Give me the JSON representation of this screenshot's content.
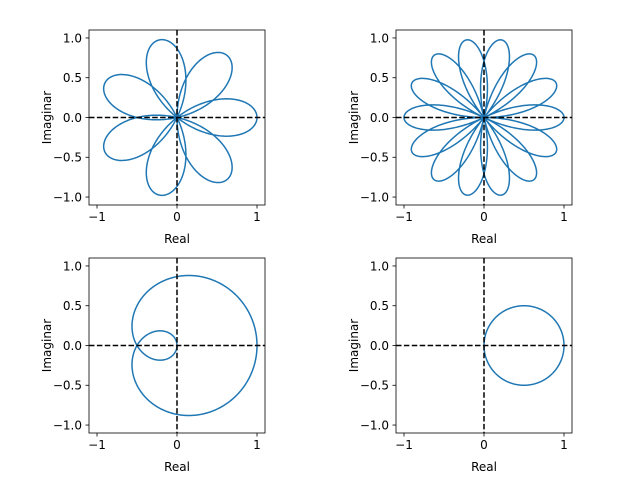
{
  "chart_data": [
    {
      "type": "line",
      "xlabel": "Real",
      "ylabel": "Imaginar",
      "xlim": [
        -1.1,
        1.1
      ],
      "ylim": [
        -1.1,
        1.1
      ],
      "xticks": [
        -1,
        0,
        1
      ],
      "yticks": [
        -1.0,
        -0.5,
        0.0,
        0.5,
        1.0
      ],
      "xtick_labels": [
        "−1",
        "0",
        "1"
      ],
      "ytick_labels": [
        "−1.0",
        "−0.5",
        "0.0",
        "0.5",
        "1.0"
      ],
      "reference_lines": [
        "x = 0",
        "y = 0"
      ],
      "curve": {
        "form": "polar",
        "equation": "r = cos(7θ/3)",
        "theta_range_turns": 3
      },
      "series_color": "#1f77b4"
    },
    {
      "type": "line",
      "xlabel": "Real",
      "ylabel": "Imaginar",
      "xlim": [
        -1.1,
        1.1
      ],
      "ylim": [
        -1.1,
        1.1
      ],
      "xticks": [
        -1,
        0,
        1
      ],
      "yticks": [
        -1.0,
        -0.5,
        0.0,
        0.5,
        1.0
      ],
      "xtick_labels": [
        "−1",
        "0",
        "1"
      ],
      "ytick_labels": [
        "−1.0",
        "−0.5",
        "0.0",
        "0.5",
        "1.0"
      ],
      "reference_lines": [
        "x = 0",
        "y = 0"
      ],
      "curve": {
        "form": "polar",
        "equation": "r = cos(7θ/2)",
        "theta_range_turns": 2
      },
      "series_color": "#1f77b4"
    },
    {
      "type": "line",
      "xlabel": "Real",
      "ylabel": "Imaginar",
      "xlim": [
        -1.1,
        1.1
      ],
      "ylim": [
        -1.1,
        1.1
      ],
      "xticks": [
        -1,
        0,
        1
      ],
      "yticks": [
        -1.0,
        -0.5,
        0.0,
        0.5,
        1.0
      ],
      "xtick_labels": [
        "−1",
        "0",
        "1"
      ],
      "ytick_labels": [
        "−1.0",
        "−0.5",
        "0.0",
        "0.5",
        "1.0"
      ],
      "reference_lines": [
        "x = 0",
        "y = 0"
      ],
      "curve": {
        "form": "polar",
        "equation": "r = cos(θ/3)",
        "theta_range_turns": 3
      },
      "series_color": "#1f77b4"
    },
    {
      "type": "line",
      "xlabel": "Real",
      "ylabel": "Imaginar",
      "xlim": [
        -1.1,
        1.1
      ],
      "ylim": [
        -1.1,
        1.1
      ],
      "xticks": [
        -1,
        0,
        1
      ],
      "yticks": [
        -1.0,
        -0.5,
        0.0,
        0.5,
        1.0
      ],
      "xtick_labels": [
        "−1",
        "0",
        "1"
      ],
      "ytick_labels": [
        "−1.0",
        "−0.5",
        "0.0",
        "0.5",
        "1.0"
      ],
      "reference_lines": [
        "x = 0",
        "y = 0"
      ],
      "curve": {
        "form": "polar",
        "equation": "r = cos(θ)",
        "theta_range_turns": 1
      },
      "series_color": "#1f77b4"
    }
  ]
}
